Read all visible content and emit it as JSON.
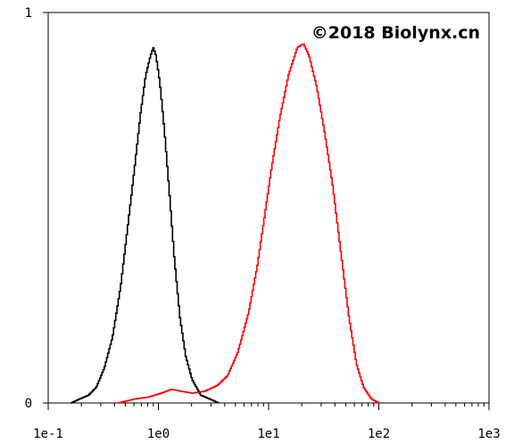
{
  "chart_data": {
    "type": "line",
    "title": "",
    "xlabel": "",
    "ylabel": "",
    "x_scale": "log",
    "xlim": [
      0.1,
      1000
    ],
    "ylim": [
      0,
      1
    ],
    "x_ticks": [
      {
        "value": 0.1,
        "label": "1e-1"
      },
      {
        "value": 1,
        "label": "1e0"
      },
      {
        "value": 10,
        "label": "1e1"
      },
      {
        "value": 100,
        "label": "1e2"
      },
      {
        "value": 1000,
        "label": "1e3"
      }
    ],
    "y_ticks": [
      {
        "value": 0,
        "label": "0"
      },
      {
        "value": 1,
        "label": "1"
      }
    ],
    "grid": false,
    "legend": "none",
    "annotation": "©2018 Biolynx.cn",
    "series": [
      {
        "color": "#000000",
        "points": [
          [
            0.16,
            0.0
          ],
          [
            0.19,
            0.01
          ],
          [
            0.23,
            0.02
          ],
          [
            0.27,
            0.04
          ],
          [
            0.32,
            0.09
          ],
          [
            0.38,
            0.17
          ],
          [
            0.45,
            0.3
          ],
          [
            0.52,
            0.45
          ],
          [
            0.6,
            0.6
          ],
          [
            0.68,
            0.74
          ],
          [
            0.76,
            0.84
          ],
          [
            0.84,
            0.89
          ],
          [
            0.89,
            0.91
          ],
          [
            0.94,
            0.89
          ],
          [
            1.02,
            0.82
          ],
          [
            1.12,
            0.7
          ],
          [
            1.25,
            0.53
          ],
          [
            1.38,
            0.37
          ],
          [
            1.55,
            0.22
          ],
          [
            1.75,
            0.12
          ],
          [
            2.0,
            0.06
          ],
          [
            2.4,
            0.02
          ],
          [
            2.9,
            0.01
          ],
          [
            3.5,
            0.0
          ]
        ]
      },
      {
        "color": "#ff0000",
        "points": [
          [
            0.43,
            0.0
          ],
          [
            0.6,
            0.01
          ],
          [
            0.8,
            0.015
          ],
          [
            1.05,
            0.025
          ],
          [
            1.3,
            0.035
          ],
          [
            1.6,
            0.03
          ],
          [
            2.0,
            0.025
          ],
          [
            2.6,
            0.03
          ],
          [
            3.4,
            0.045
          ],
          [
            4.2,
            0.07
          ],
          [
            5.2,
            0.13
          ],
          [
            6.5,
            0.23
          ],
          [
            7.8,
            0.35
          ],
          [
            9.0,
            0.47
          ],
          [
            10.5,
            0.6
          ],
          [
            12.5,
            0.73
          ],
          [
            15.0,
            0.84
          ],
          [
            18.0,
            0.91
          ],
          [
            20.5,
            0.92
          ],
          [
            23.0,
            0.89
          ],
          [
            27.0,
            0.81
          ],
          [
            32.0,
            0.69
          ],
          [
            38.0,
            0.55
          ],
          [
            45.0,
            0.38
          ],
          [
            53.0,
            0.22
          ],
          [
            62.0,
            0.1
          ],
          [
            72.0,
            0.04
          ],
          [
            85.0,
            0.01
          ],
          [
            100.0,
            0.0
          ]
        ]
      }
    ]
  }
}
